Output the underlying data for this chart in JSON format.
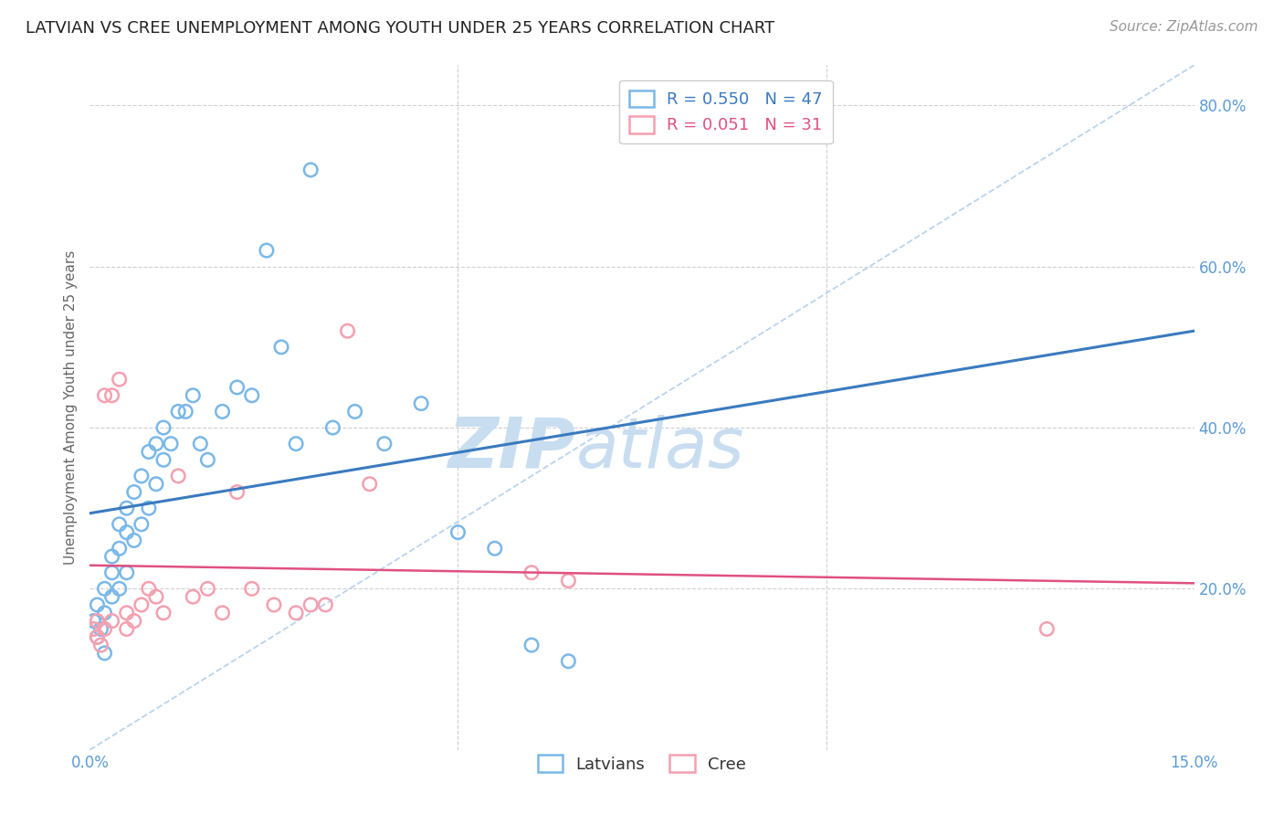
{
  "title": "LATVIAN VS CREE UNEMPLOYMENT AMONG YOUTH UNDER 25 YEARS CORRELATION CHART",
  "source": "Source: ZipAtlas.com",
  "ylabel": "Unemployment Among Youth under 25 years",
  "xlim": [
    0.0,
    0.15
  ],
  "ylim": [
    0.0,
    0.85
  ],
  "yticks_right": [
    0.2,
    0.4,
    0.6,
    0.8
  ],
  "ytick_labels_right": [
    "20.0%",
    "40.0%",
    "60.0%",
    "80.0%"
  ],
  "latvians_x": [
    0.0005,
    0.001,
    0.001,
    0.0015,
    0.002,
    0.002,
    0.002,
    0.003,
    0.003,
    0.003,
    0.004,
    0.004,
    0.004,
    0.005,
    0.005,
    0.005,
    0.006,
    0.006,
    0.007,
    0.007,
    0.008,
    0.008,
    0.009,
    0.009,
    0.01,
    0.01,
    0.011,
    0.012,
    0.013,
    0.014,
    0.015,
    0.016,
    0.018,
    0.02,
    0.022,
    0.024,
    0.026,
    0.028,
    0.03,
    0.033,
    0.036,
    0.04,
    0.045,
    0.05,
    0.055,
    0.06,
    0.065
  ],
  "latvians_y": [
    0.16,
    0.14,
    0.18,
    0.15,
    0.12,
    0.17,
    0.2,
    0.19,
    0.22,
    0.24,
    0.2,
    0.25,
    0.28,
    0.22,
    0.27,
    0.3,
    0.26,
    0.32,
    0.28,
    0.34,
    0.3,
    0.37,
    0.33,
    0.38,
    0.36,
    0.4,
    0.38,
    0.42,
    0.42,
    0.44,
    0.38,
    0.36,
    0.42,
    0.45,
    0.44,
    0.62,
    0.5,
    0.38,
    0.72,
    0.4,
    0.42,
    0.38,
    0.43,
    0.27,
    0.25,
    0.13,
    0.11
  ],
  "cree_x": [
    0.0005,
    0.001,
    0.001,
    0.0015,
    0.002,
    0.002,
    0.003,
    0.003,
    0.004,
    0.005,
    0.005,
    0.006,
    0.007,
    0.008,
    0.009,
    0.01,
    0.012,
    0.014,
    0.016,
    0.018,
    0.02,
    0.022,
    0.025,
    0.028,
    0.03,
    0.032,
    0.035,
    0.038,
    0.06,
    0.065,
    0.13
  ],
  "cree_y": [
    0.15,
    0.14,
    0.16,
    0.13,
    0.15,
    0.44,
    0.16,
    0.44,
    0.46,
    0.15,
    0.17,
    0.16,
    0.18,
    0.2,
    0.19,
    0.17,
    0.34,
    0.19,
    0.2,
    0.17,
    0.32,
    0.2,
    0.18,
    0.17,
    0.18,
    0.18,
    0.52,
    0.33,
    0.22,
    0.21,
    0.15
  ],
  "latvians_R": 0.55,
  "latvians_N": 47,
  "cree_R": 0.051,
  "cree_N": 31,
  "latvians_color": "#7ab8e8",
  "cree_color": "#f4a0b0",
  "latvians_line_color": "#3a7abf",
  "cree_line_color": "#e05080",
  "diagonal_color": "#b8d4ee",
  "background_color": "#ffffff",
  "title_fontsize": 13,
  "axis_label_fontsize": 11,
  "tick_fontsize": 12,
  "legend_fontsize": 13,
  "source_fontsize": 11,
  "watermark_zip_color": "#c8ddf0",
  "watermark_atlas_color": "#c8ddf0",
  "watermark_fontsize": 55
}
